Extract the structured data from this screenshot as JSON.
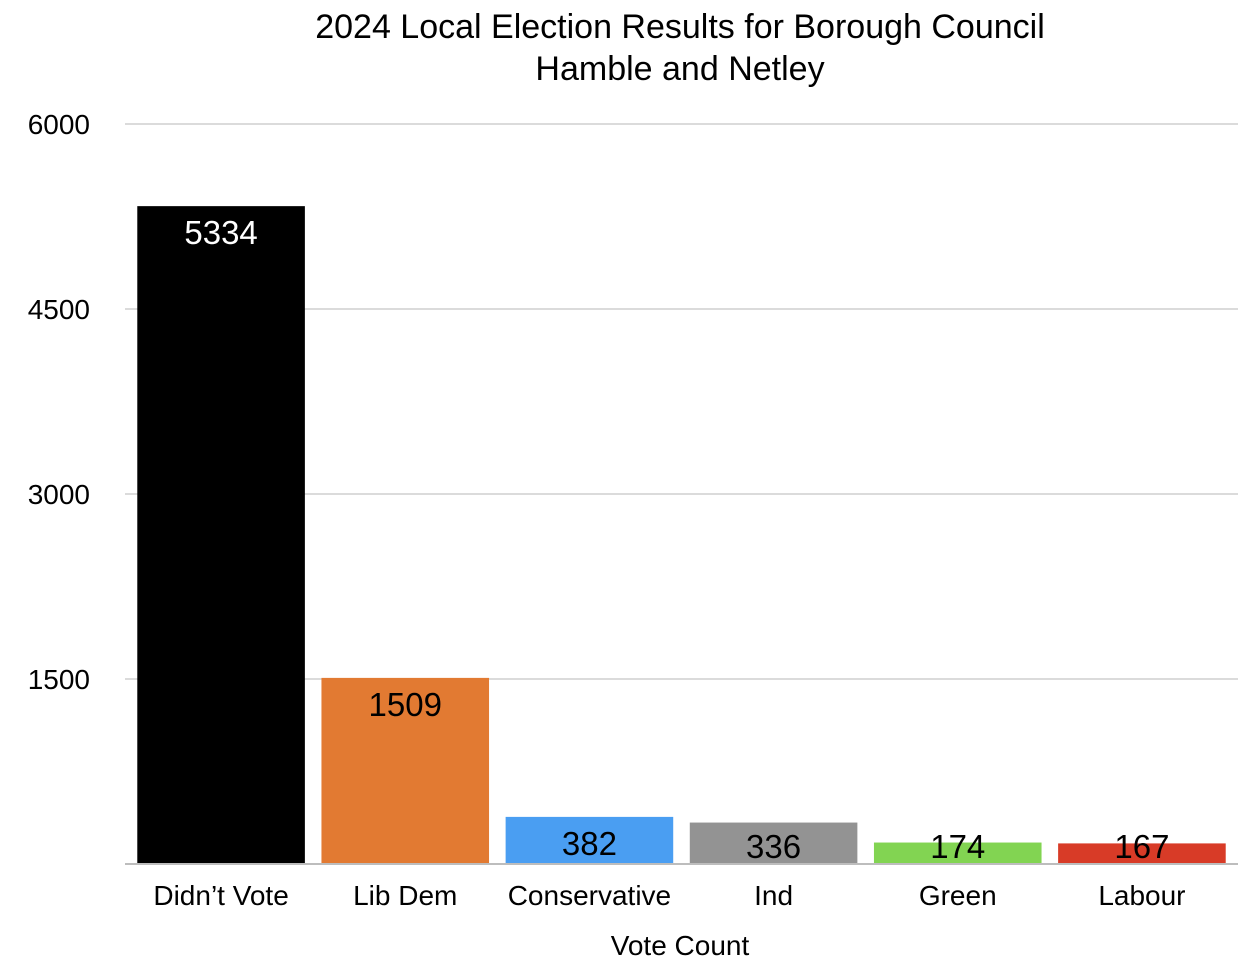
{
  "chart_data": {
    "type": "bar",
    "title": "2024 Local Election Results for Borough Council",
    "subtitle": "Hamble and Netley",
    "xlabel": "Vote Count",
    "ylabel": "",
    "ylim": [
      0,
      6000
    ],
    "yticks": [
      1500,
      3000,
      4500,
      6000
    ],
    "grid": true,
    "legend": "none",
    "categories": [
      "Didn’t Vote",
      "Lib Dem",
      "Conservative",
      "Ind",
      "Green",
      "Labour"
    ],
    "values": [
      5334,
      1509,
      382,
      336,
      174,
      167
    ],
    "data_labels": [
      "5334",
      "1509",
      "382",
      "336",
      "174",
      "167"
    ],
    "colors": [
      "#000000",
      "#E27A32",
      "#4A9EF2",
      "#939393",
      "#82D452",
      "#D83B27"
    ],
    "label_colors": [
      "#FFFFFF",
      "#000000",
      "#000000",
      "#000000",
      "#000000",
      "#000000"
    ]
  }
}
